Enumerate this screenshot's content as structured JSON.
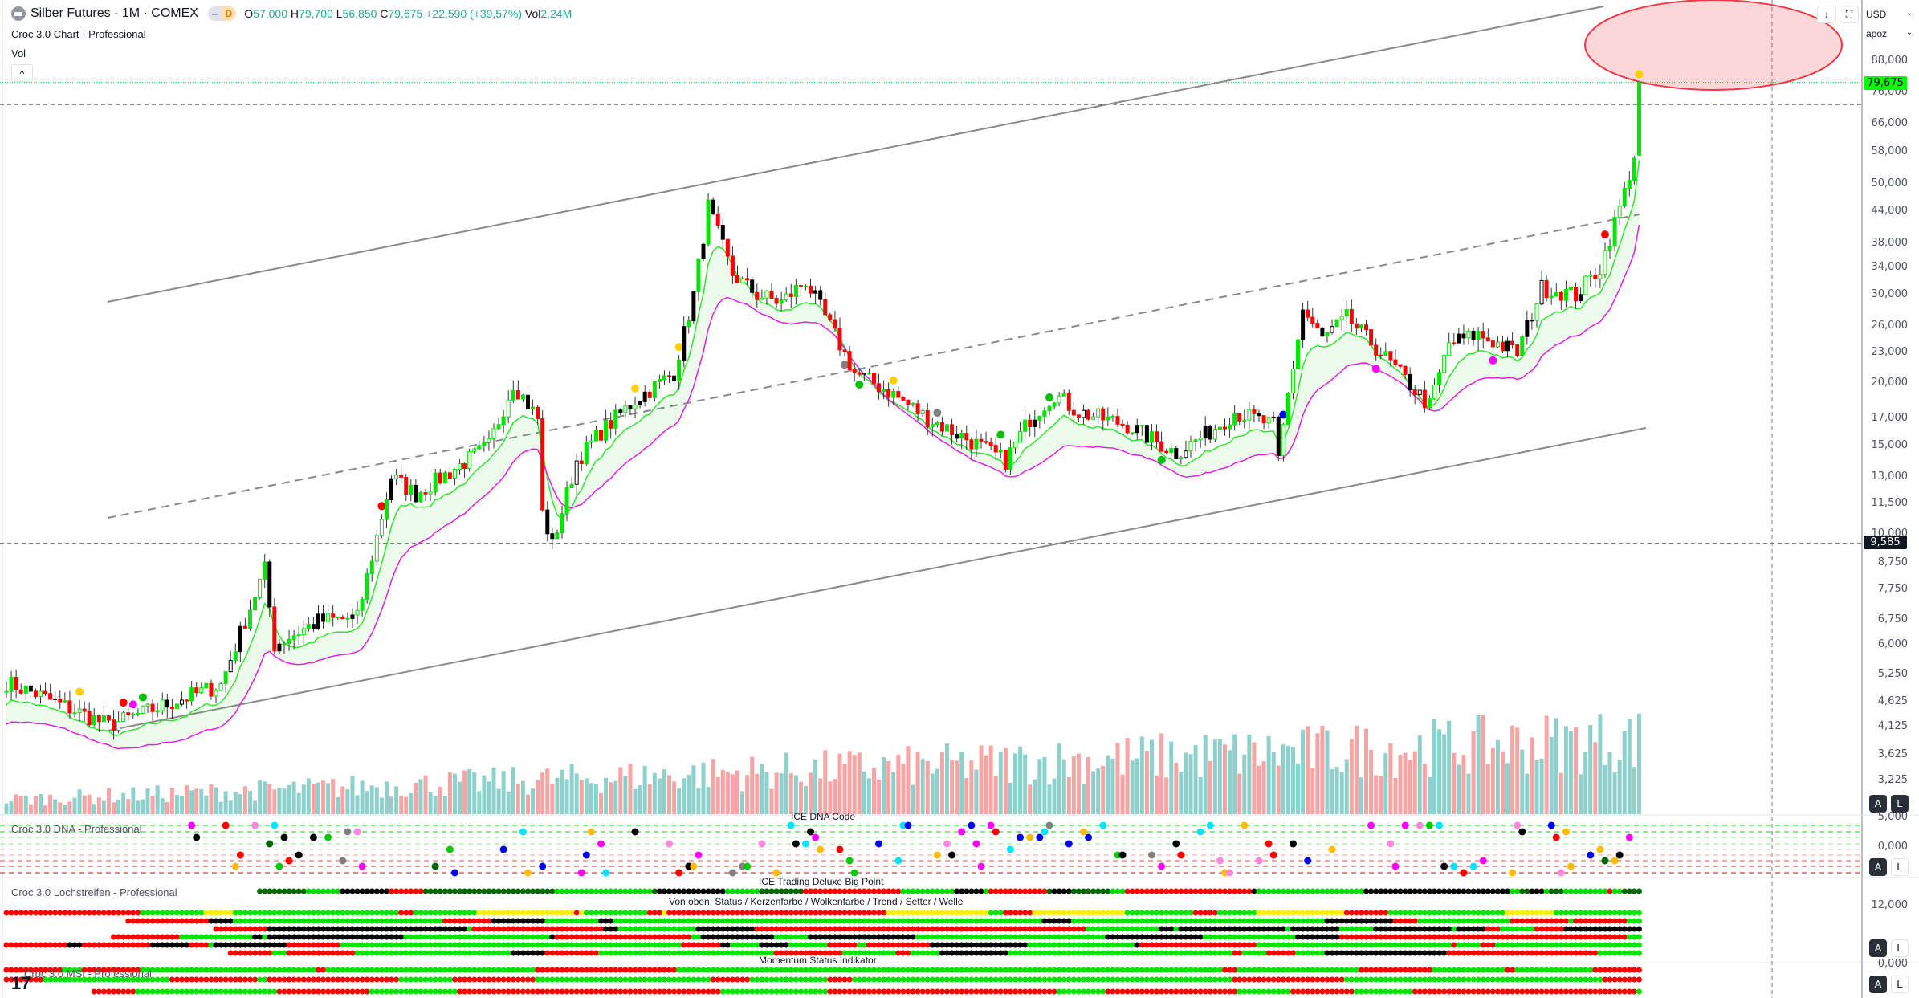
{
  "header": {
    "symbol": "Silber Futures · 1M · COMEX",
    "badge_market": "–",
    "badge_delay": "D",
    "o_label": "O",
    "o": "57,000",
    "h_label": "H",
    "h": "79,700",
    "l_label": "L",
    "l": "56,850",
    "c_label": "C",
    "c": "79,675",
    "change": "+22,590 (+39,57%)",
    "vol_label": "Vol",
    "vol": "2,24M",
    "indicator": "Croc 3.0 Chart - Professional",
    "vol_indicator": "Vol",
    "collapse": "^"
  },
  "toolbar": {
    "scroll_down": "↓",
    "fullscreen": "⛶",
    "currency": "USD",
    "unit": "apoz",
    "chevron": "⌄"
  },
  "price_axis": {
    "labels": [
      "88,000",
      "76,000",
      "66,000",
      "58,000",
      "50,000",
      "44,000",
      "38,000",
      "34,000",
      "30,000",
      "26,000",
      "23,000",
      "20,000",
      "17,000",
      "15,000",
      "13,000",
      "11,500",
      "10,000",
      "8,750",
      "7,750",
      "6,750",
      "6,000",
      "5,250",
      "4,625",
      "4,125",
      "3,625",
      "3,225"
    ],
    "last_price": "79,675",
    "marker_price": "9,585",
    "auto": "A",
    "log": "L"
  },
  "panes": {
    "dna": {
      "title": "Croc 3.0 DNA - Professional",
      "caption": "ICE DNA Code",
      "axis": [
        "5,000",
        "0,000"
      ]
    },
    "lochstreifen": {
      "title": "Croc 3.0 Lochstreifen - Professional",
      "caption": "ICE Trading Deluxe Big Point",
      "subcaption": "Von oben: Status / Kerzenfarbe / Wolkenfarbe / Trend / Setter / Welle",
      "axis": [
        "12,000"
      ]
    },
    "msi": {
      "title": "Croc 3.0 MSI - Professional",
      "caption": "Momentum Status Indikator",
      "axis": [
        "0,000"
      ]
    }
  },
  "logo": "17",
  "colors": {
    "up": "#00e600",
    "down": "#ff0000",
    "vol_up": "#8ed1cc",
    "vol_down": "#f7a4a4",
    "green_line": "#2ee62e",
    "magenta_line": "#e020e0",
    "accent_tag": "#00ff00"
  },
  "chart_data": {
    "type": "candlestick",
    "title": "Silber Futures · 1M · COMEX",
    "scale": "log",
    "ylim": [
      3100,
      95000
    ],
    "last_candle": {
      "open": 57000,
      "high": 79700,
      "low": 56850,
      "close": 79675
    },
    "price_path": [
      [
        0,
        5050
      ],
      [
        6,
        4800
      ],
      [
        21,
        4150
      ],
      [
        31,
        4500
      ],
      [
        44,
        5000
      ],
      [
        53,
        8500
      ],
      [
        55,
        6000
      ],
      [
        64,
        6700
      ],
      [
        72,
        6800
      ],
      [
        75,
        9000
      ],
      [
        79,
        13000
      ],
      [
        84,
        12000
      ],
      [
        92,
        13500
      ],
      [
        99,
        15000
      ],
      [
        104,
        20000
      ],
      [
        109,
        17000
      ],
      [
        110,
        11000
      ],
      [
        112,
        9500
      ],
      [
        117,
        14000
      ],
      [
        122,
        16000
      ],
      [
        129,
        18500
      ],
      [
        137,
        21000
      ],
      [
        141,
        30000
      ],
      [
        144,
        45000
      ],
      [
        149,
        33000
      ],
      [
        154,
        30000
      ],
      [
        159,
        29000
      ],
      [
        164,
        32000
      ],
      [
        169,
        26000
      ],
      [
        174,
        21000
      ],
      [
        182,
        19000
      ],
      [
        189,
        17000
      ],
      [
        197,
        15500
      ],
      [
        205,
        14000
      ],
      [
        210,
        17000
      ],
      [
        215,
        19000
      ],
      [
        220,
        17500
      ],
      [
        230,
        16500
      ],
      [
        240,
        14500
      ],
      [
        247,
        16000
      ],
      [
        252,
        17500
      ],
      [
        260,
        16500
      ],
      [
        261,
        14000
      ],
      [
        263,
        19000
      ],
      [
        266,
        28000
      ],
      [
        270,
        24500
      ],
      [
        275,
        27000
      ],
      [
        282,
        23000
      ],
      [
        292,
        18000
      ],
      [
        296,
        24000
      ],
      [
        302,
        25000
      ],
      [
        310,
        23000
      ],
      [
        315,
        31000
      ],
      [
        322,
        30000
      ],
      [
        327,
        34000
      ],
      [
        332,
        48000
      ],
      [
        334,
        57000
      ]
    ],
    "horizontal_levels": [
      79675,
      72000,
      9585
    ]
  }
}
